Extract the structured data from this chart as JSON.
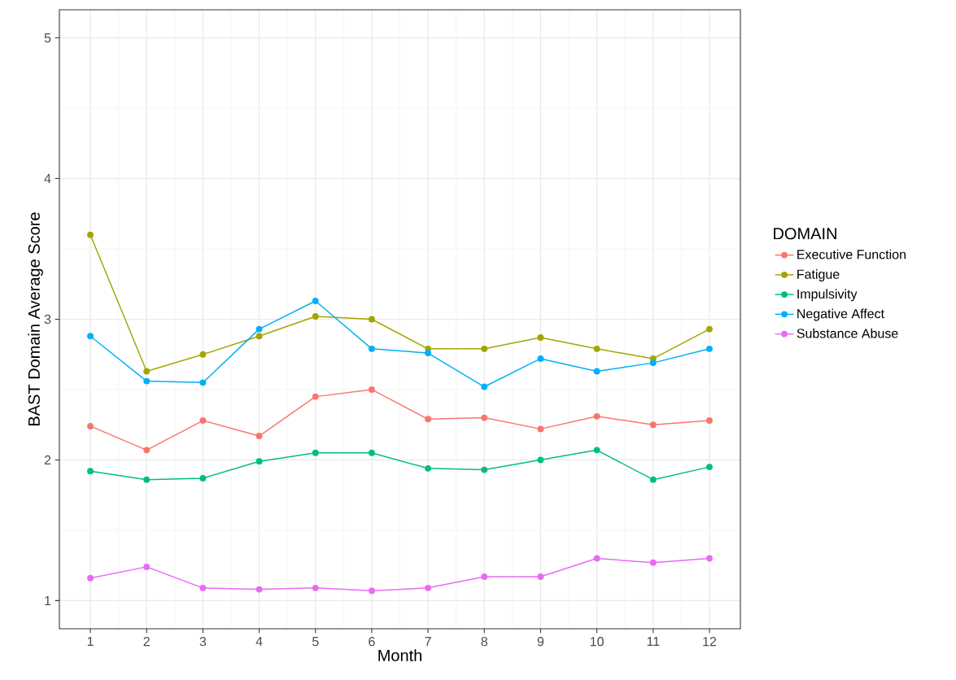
{
  "chart_data": {
    "type": "line",
    "xlabel": "Month",
    "ylabel": "BAST Domain Average Score",
    "legend_title": "DOMAIN",
    "x": [
      1,
      2,
      3,
      4,
      5,
      6,
      7,
      8,
      9,
      10,
      11,
      12
    ],
    "series": [
      {
        "name": "Executive Function",
        "color": "#f8766d",
        "values": [
          2.24,
          2.07,
          2.28,
          2.17,
          2.45,
          2.5,
          2.29,
          2.3,
          2.22,
          2.31,
          2.25,
          2.28
        ]
      },
      {
        "name": "Fatigue",
        "color": "#a3a500",
        "values": [
          3.6,
          2.63,
          2.75,
          2.88,
          3.02,
          3.0,
          2.79,
          2.79,
          2.87,
          2.79,
          2.72,
          2.93
        ]
      },
      {
        "name": "Impulsivity",
        "color": "#00bf7d",
        "values": [
          1.92,
          1.86,
          1.87,
          1.99,
          2.05,
          2.05,
          1.94,
          1.93,
          2.0,
          2.07,
          1.86,
          1.95
        ]
      },
      {
        "name": "Negative Affect",
        "color": "#00b0f6",
        "values": [
          2.88,
          2.56,
          2.55,
          2.93,
          3.13,
          2.79,
          2.76,
          2.52,
          2.72,
          2.63,
          2.69,
          2.79
        ]
      },
      {
        "name": "Substance Abuse",
        "color": "#e76bf3",
        "values": [
          1.16,
          1.24,
          1.09,
          1.08,
          1.09,
          1.07,
          1.09,
          1.17,
          1.17,
          1.3,
          1.27,
          1.3
        ]
      }
    ],
    "xlim": [
      0.45,
      12.55
    ],
    "ylim": [
      0.8,
      5.2
    ],
    "xticks": [
      1,
      2,
      3,
      4,
      5,
      6,
      7,
      8,
      9,
      10,
      11,
      12
    ],
    "yticks": [
      1,
      2,
      3,
      4,
      5
    ],
    "grid": true,
    "legend": "right",
    "marker": "circle",
    "line_style": "solid"
  }
}
